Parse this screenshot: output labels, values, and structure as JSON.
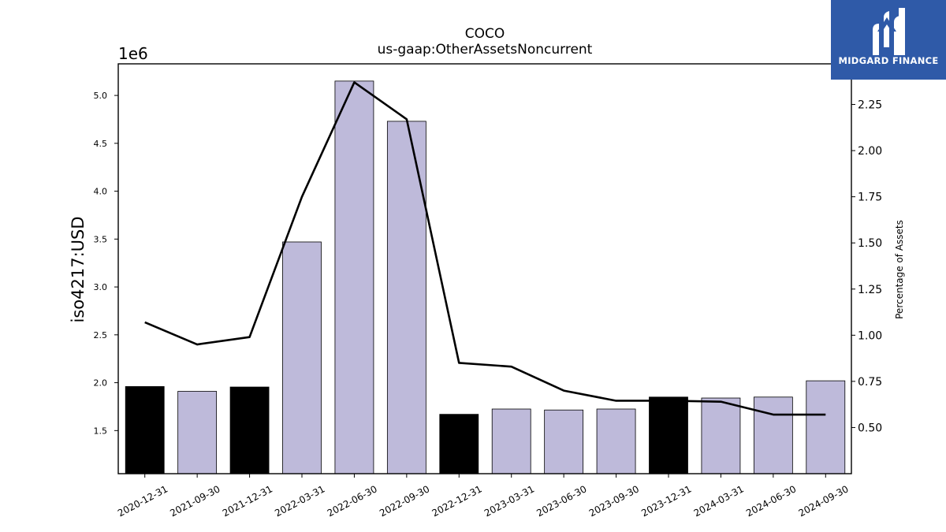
{
  "chart_data": {
    "type": "bar",
    "title": "COCO",
    "subtitle": "us-gaap:OtherAssetsNoncurrent",
    "ylabel": "iso4217:USD",
    "y_offset_text": "1e6",
    "y2label": "Percentage of Assets",
    "categories": [
      "2020-12-31",
      "2021-09-30",
      "2021-12-31",
      "2022-03-31",
      "2022-06-30",
      "2022-09-30",
      "2022-12-31",
      "2023-03-31",
      "2023-06-30",
      "2023-09-30",
      "2023-12-31",
      "2024-03-31",
      "2024-06-30",
      "2024-09-30"
    ],
    "values": [
      1960000,
      1910000,
      1955000,
      3470000,
      5150000,
      4730000,
      1670000,
      1725000,
      1715000,
      1725000,
      1850000,
      1840000,
      1850000,
      2020000
    ],
    "bar_kind": [
      "annual",
      "quarterly",
      "annual",
      "quarterly",
      "quarterly",
      "quarterly",
      "annual",
      "quarterly",
      "quarterly",
      "quarterly",
      "annual",
      "quarterly",
      "quarterly",
      "quarterly"
    ],
    "bar_colors": {
      "annual": "#000000",
      "quarterly": "#bebada"
    },
    "ylim": [
      1050000,
      5330000
    ],
    "yticks": [
      1500000,
      2000000,
      2500000,
      3000000,
      3500000,
      4000000,
      4500000,
      5000000
    ],
    "ytick_labels": [
      "1.5",
      "2.0",
      "2.5",
      "3.0",
      "3.5",
      "4.0",
      "4.5",
      "5.0"
    ],
    "percent_series": {
      "values": [
        1.07,
        0.95,
        0.99,
        1.75,
        2.37,
        2.17,
        0.85,
        0.83,
        0.7,
        0.645,
        0.645,
        0.64,
        0.57,
        0.57
      ],
      "color": "#000000"
    },
    "y2lim": [
      0.25,
      2.47
    ],
    "y2ticks": [
      0.5,
      0.75,
      1.0,
      1.25,
      1.5,
      1.75,
      2.0,
      2.25
    ],
    "y2tick_labels": [
      "0.50",
      "0.75",
      "1.00",
      "1.25",
      "1.50",
      "1.75",
      "2.00",
      "2.25"
    ],
    "grid": false,
    "legend": "none"
  },
  "logo": {
    "text": "MIDGARD FINANCE",
    "background": "#2f5aa8",
    "icon": "midgard-m-logo-icon"
  }
}
